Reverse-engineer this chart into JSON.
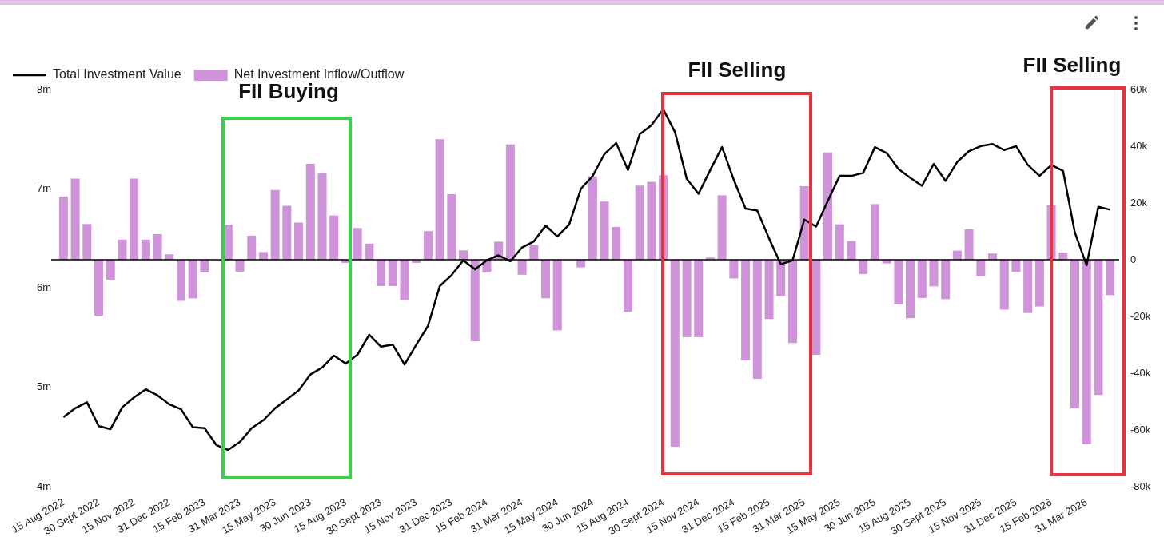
{
  "chart_data": {
    "type": "bar",
    "categories": [
      "15 Aug 2022",
      null,
      null,
      "30 Sept 2022",
      null,
      null,
      "15 Nov 2022",
      null,
      null,
      "31 Dec 2022",
      null,
      null,
      "15 Feb 2023",
      null,
      null,
      "31 Mar 2023",
      null,
      null,
      "15 May 2023",
      null,
      null,
      "30 Jun 2023",
      null,
      null,
      "15 Aug 2023",
      null,
      null,
      "30 Sept 2023",
      null,
      null,
      "15 Nov 2023",
      null,
      null,
      "31 Dec 2023",
      null,
      null,
      "15 Feb 2024",
      null,
      null,
      "31 Mar 2024",
      null,
      null,
      "15 May 2024",
      null,
      null,
      "30 Jun 2024",
      null,
      null,
      "15 Aug 2024",
      null,
      null,
      "30 Sept 2024",
      null,
      null,
      "15 Nov 2024",
      null,
      null,
      "31 Dec 2024",
      null,
      null,
      "15 Feb 2025",
      null,
      null,
      "31 Mar 2025",
      null,
      null,
      "15 May 2025",
      null,
      null,
      "30 Jun 2025",
      null,
      null,
      "15 Aug 2025",
      null,
      null,
      "30 Sept 2025",
      null,
      null,
      "15 Nov 2025",
      null,
      null,
      "31 Dec 2025",
      null,
      null,
      "15 Feb 2026",
      null,
      null,
      "31 Mar 2026",
      null,
      null
    ],
    "series": [
      {
        "name": "Total Investment Value",
        "type": "line",
        "axis": "y",
        "color": "#000000",
        "values": [
          4700000,
          4790000,
          4850000,
          4610000,
          4580000,
          4800000,
          4900000,
          4980000,
          4920000,
          4830000,
          4780000,
          4600000,
          4590000,
          4420000,
          4370000,
          4450000,
          4590000,
          4670000,
          4790000,
          4880000,
          4970000,
          5130000,
          5200000,
          5320000,
          5240000,
          5330000,
          5530000,
          5410000,
          5430000,
          5230000,
          5430000,
          5620000,
          6020000,
          6130000,
          6280000,
          6190000,
          6280000,
          6330000,
          6270000,
          6410000,
          6470000,
          6630000,
          6520000,
          6640000,
          7000000,
          7130000,
          7350000,
          7460000,
          7190000,
          7550000,
          7640000,
          7800000,
          7570000,
          7100000,
          6950000,
          7190000,
          7420000,
          7090000,
          6800000,
          6780000,
          6500000,
          6240000,
          6280000,
          6690000,
          6620000,
          6880000,
          7130000,
          7130000,
          7160000,
          7420000,
          7360000,
          7200000,
          7110000,
          7030000,
          7250000,
          7080000,
          7270000,
          7380000,
          7430000,
          7450000,
          7390000,
          7430000,
          7240000,
          7130000,
          7240000,
          7180000,
          6560000,
          6230000,
          6820000,
          6790000
        ]
      },
      {
        "name": "Net Investment Inflow/Outflow",
        "axis": "y2",
        "color": "#ce93d8",
        "values": [
          22300,
          28600,
          12600,
          -19700,
          -7100,
          7100,
          28600,
          7100,
          9000,
          1900,
          -14500,
          -13600,
          -4500,
          null,
          12300,
          -4200,
          8500,
          2700,
          24600,
          19000,
          13100,
          33800,
          30600,
          15600,
          -1100,
          11200,
          5700,
          -9300,
          -9300,
          -14200,
          -1100,
          10100,
          42500,
          23100,
          3300,
          -28700,
          -4500,
          6400,
          40600,
          -5300,
          5200,
          -13600,
          -24900,
          null,
          -2700,
          29400,
          20500,
          11600,
          -18300,
          26100,
          27500,
          29800,
          -65900,
          -27300,
          -27300,
          800,
          22700,
          -6600,
          -35400,
          -42000,
          -20900,
          -12800,
          -29400,
          25900,
          -33500,
          37800,
          12500,
          6600,
          -5100,
          19600,
          -1300,
          -15700,
          -20600,
          -13500,
          -9400,
          -13900,
          3200,
          10700,
          -5800,
          2200,
          -17600,
          -4300,
          -18800,
          -16500,
          19300,
          2500,
          -52300,
          -65000,
          -47700,
          -12500
        ]
      }
    ],
    "ylim": [
      4000000,
      8000000
    ],
    "yticks": [
      {
        "value": 4000000,
        "label": "4m"
      },
      {
        "value": 5000000,
        "label": "5m"
      },
      {
        "value": 6000000,
        "label": "6m"
      },
      {
        "value": 7000000,
        "label": "7m"
      },
      {
        "value": 8000000,
        "label": "8m"
      }
    ],
    "y2lim": [
      -80000,
      60000
    ],
    "y2ticks": [
      {
        "value": -80000,
        "label": "-80k"
      },
      {
        "value": -60000,
        "label": "-60k"
      },
      {
        "value": -40000,
        "label": "-40k"
      },
      {
        "value": -20000,
        "label": "-20k"
      },
      0,
      {
        "value": 20000,
        "label": "20k"
      },
      {
        "value": 40000,
        "label": "40k"
      },
      {
        "value": 60000,
        "label": "60k"
      }
    ],
    "ref_lines": [
      {
        "axis": "y2",
        "value": 0,
        "color": "#000000"
      }
    ],
    "annotations": [
      "FII Buying",
      "FII Selling",
      "FII Selling"
    ],
    "legend": "top left",
    "marker": "none",
    "line_style": "solid",
    "grid": false
  }
}
